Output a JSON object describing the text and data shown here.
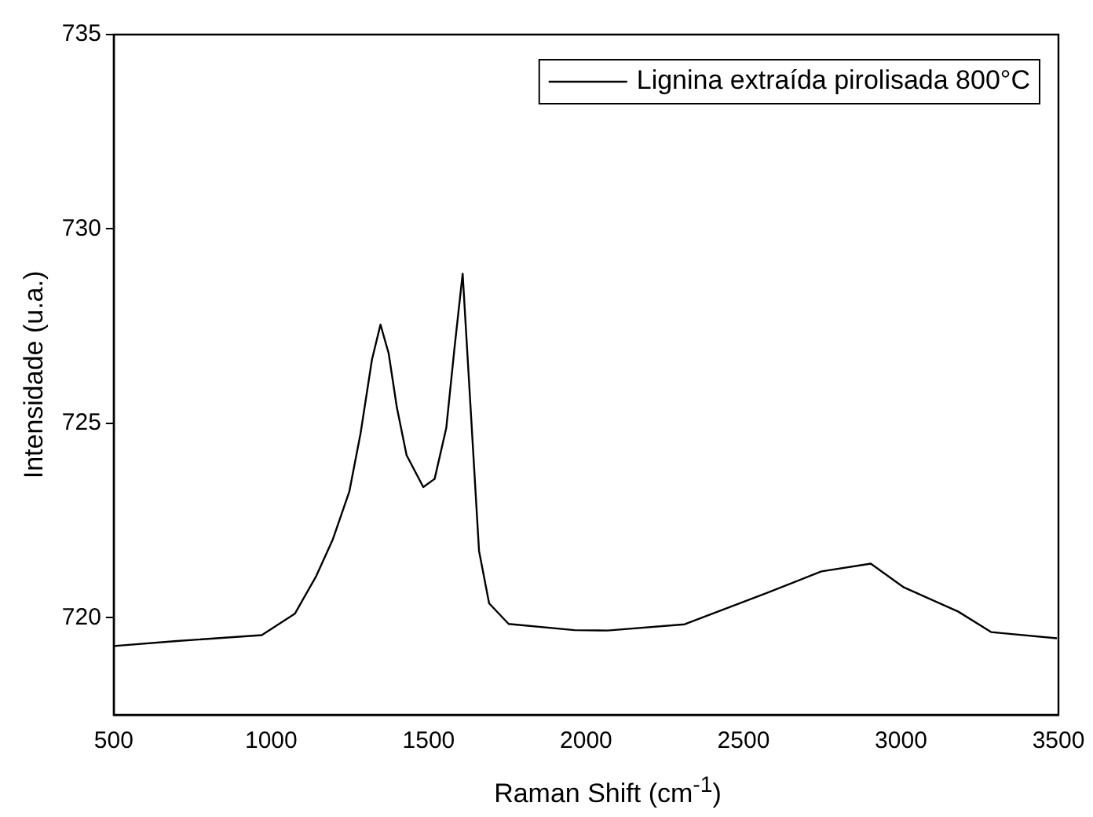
{
  "chart_data": {
    "type": "line",
    "xlabel": "Raman Shift (cm$^{-1}$)",
    "ylabel": "Intensidade (u.a.)",
    "series": [
      {
        "name": "Lignina extraída pirolisada 800°C",
        "color": "#000000",
        "x": [
          500,
          700,
          970,
          1075,
          1143,
          1195,
          1248,
          1284,
          1320,
          1347,
          1373,
          1399,
          1430,
          1483,
          1519,
          1556,
          1582,
          1608,
          1634,
          1660,
          1692,
          1754,
          1963,
          2068,
          2313,
          2575,
          2747,
          2904,
          3009,
          3181,
          3286,
          3495
        ],
        "values": [
          719.27,
          719.4,
          719.55,
          720.1,
          721.07,
          722.0,
          723.24,
          724.75,
          726.64,
          727.54,
          726.8,
          725.41,
          724.18,
          723.36,
          723.57,
          724.88,
          726.93,
          728.85,
          725.29,
          721.72,
          720.37,
          719.84,
          719.68,
          719.67,
          719.83,
          720.64,
          721.19,
          721.39,
          720.78,
          720.16,
          719.63,
          719.47
        ]
      }
    ],
    "xlim": [
      500,
      3500
    ],
    "xticks": [
      500,
      1000,
      1500,
      2000,
      2500,
      3000,
      3500
    ],
    "ylim": [
      717.5,
      735
    ],
    "yticks": [
      720,
      725,
      730,
      735
    ],
    "grid": false,
    "legend": "top right",
    "marker": "none",
    "line_style": "solid"
  }
}
